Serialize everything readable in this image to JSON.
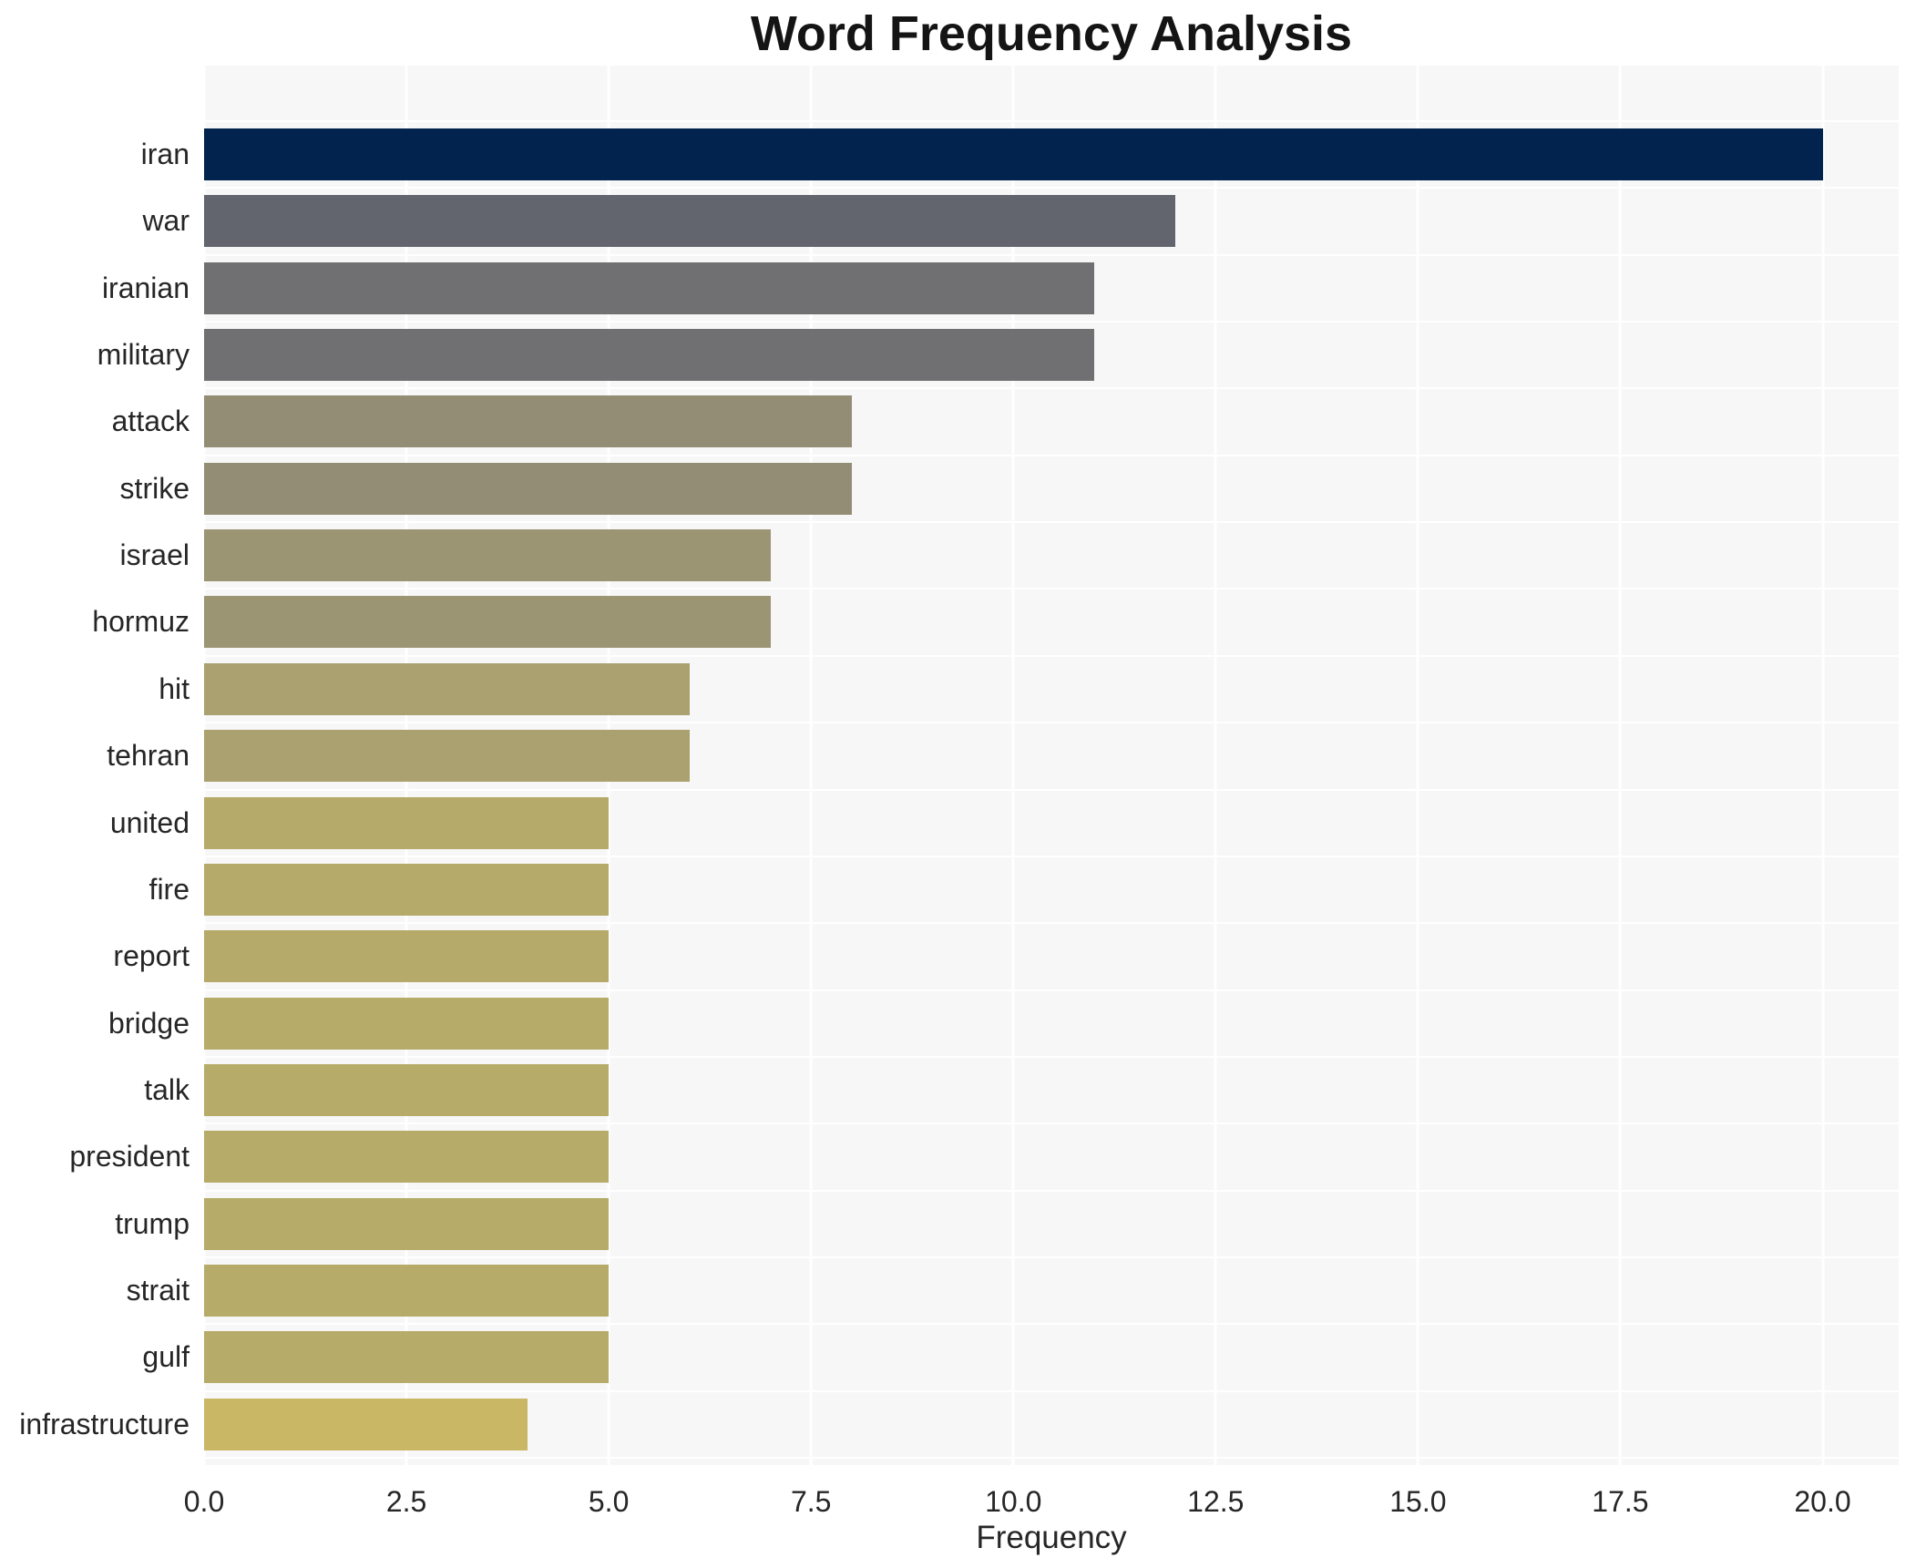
{
  "chart_data": {
    "type": "bar",
    "orientation": "horizontal",
    "title": "Word Frequency Analysis",
    "xlabel": "Frequency",
    "ylabel": "",
    "categories": [
      "iran",
      "war",
      "iranian",
      "military",
      "attack",
      "strike",
      "israel",
      "hormuz",
      "hit",
      "tehran",
      "united",
      "fire",
      "report",
      "bridge",
      "talk",
      "president",
      "trump",
      "strait",
      "gulf",
      "infrastructure"
    ],
    "values": [
      20,
      12,
      11,
      11,
      8,
      8,
      7,
      7,
      6,
      6,
      5,
      5,
      5,
      5,
      5,
      5,
      5,
      5,
      5,
      4
    ],
    "bar_colors": [
      "#02234d",
      "#63656e",
      "#707073",
      "#707073",
      "#938d75",
      "#938d75",
      "#9c9574",
      "#9c9574",
      "#aba06f",
      "#aba06f",
      "#b5aa69",
      "#b5aa69",
      "#b5aa69",
      "#b6ab68",
      "#b6ab68",
      "#b6ab68",
      "#b6ab68",
      "#b6ab68",
      "#b6ab68",
      "#c9b765"
    ],
    "xticks": [
      0.0,
      2.5,
      5.0,
      7.5,
      10.0,
      12.5,
      15.0,
      17.5,
      20.0
    ],
    "xtick_labels": [
      "0.0",
      "2.5",
      "5.0",
      "7.5",
      "10.0",
      "12.5",
      "15.0",
      "17.5",
      "20.0"
    ],
    "xlim": [
      0,
      20.94
    ],
    "grid": true,
    "legend": false,
    "colors": {
      "plot_background": "#f7f7f7",
      "grid_line": "#ffffff",
      "text": "#262626",
      "title_text": "#141414",
      "page_background": "#ffffff"
    }
  }
}
